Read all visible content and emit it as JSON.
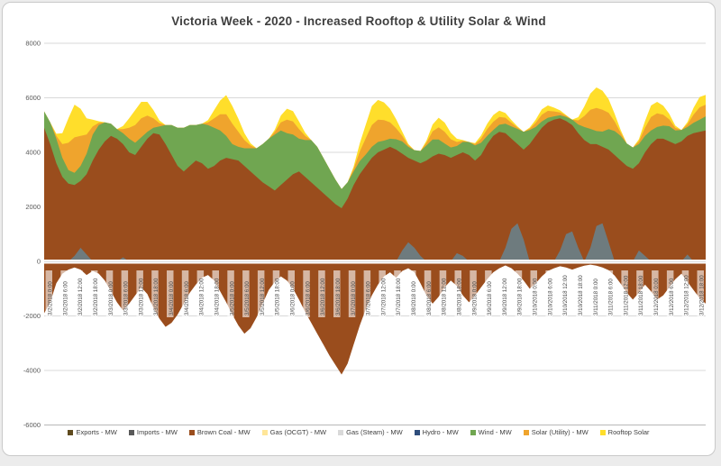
{
  "page": {
    "title": "Victoria Week - 2020 - Increased Rooftop & Utility Solar & Wind"
  },
  "colors": {
    "background": "#ffffff",
    "card_border": "#c9c9c9",
    "grid": "#d9d9d9",
    "axis_bottom": "#b7b7b7",
    "axis_text": "#595959",
    "tick_label_text": "#4d4d4d",
    "tick_label_chip": "rgba(255,255,255,0.6)",
    "zero_band": "#ffffff",
    "title_text": "#3f3f3f"
  },
  "chart_data": {
    "type": "area",
    "stacked": true,
    "title": "Victoria Week - 2020 - Increased Rooftop & Utility Solar & Wind",
    "unit": "MW",
    "grid": true,
    "legend_position": "bottom",
    "y_axis": {
      "min": -6000,
      "max": 8000,
      "tick_step": 2000,
      "ticks": [
        "8000",
        "6000",
        "4000",
        "2000",
        "0",
        "-2000",
        "-4000",
        "-6000"
      ]
    },
    "x_axis": {
      "tick_labels": [
        "3/2/2018 0:00",
        "3/2/2018 6:00",
        "3/2/2018 12:00",
        "3/2/2018 18:00",
        "3/3/2018 0:00",
        "3/3/2018 6:00",
        "3/3/2018 12:00",
        "3/3/2018 18:00",
        "3/4/2018 0:00",
        "3/4/2018 6:00",
        "3/4/2018 12:00",
        "3/4/2018 18:00",
        "3/5/2018 0:00",
        "3/5/2018 6:00",
        "3/5/2018 12:00",
        "3/5/2018 18:00",
        "3/6/2018 0:00",
        "3/6/2018 6:00",
        "3/6/2018 12:00",
        "3/6/2018 18:00",
        "3/7/2018 0:00",
        "3/7/2018 6:00",
        "3/7/2018 12:00",
        "3/7/2018 18:00",
        "3/8/2018 0:00",
        "3/8/2018 6:00",
        "3/8/2018 12:00",
        "3/8/2018 18:00",
        "3/9/2018 0:00",
        "3/9/2018 6:00",
        "3/9/2018 12:00",
        "3/9/2018 18:00",
        "3/10/2018 0:00",
        "3/10/2018 6:00",
        "3/10/2018 12:00",
        "3/10/2018 18:00",
        "3/11/2018 0:00",
        "3/11/2018 6:00",
        "3/11/2018 12:00",
        "3/11/2018 18:00",
        "3/12/2018 0:00",
        "3/12/2018 6:00",
        "3/12/2018 12:00",
        "3/12/2018 18:00"
      ]
    },
    "series": [
      {
        "name": "Brown Coal - MW",
        "color": "#9a4d1d",
        "values": [
          4900,
          4300,
          3600,
          3100,
          2850,
          2800,
          2950,
          3200,
          3700,
          4100,
          4400,
          4600,
          4500,
          4300,
          4000,
          3900,
          4200,
          4500,
          4700,
          4650,
          4300,
          3900,
          3500,
          3300,
          3500,
          3700,
          3600,
          3400,
          3500,
          3700,
          3800,
          3750,
          3700,
          3500,
          3300,
          3100,
          2900,
          2750,
          2600,
          2800,
          3000,
          3200,
          3300,
          3100,
          2900,
          2700,
          2500,
          2300,
          2100,
          1950,
          2300,
          2800,
          3200,
          3500,
          3800,
          4000,
          4100,
          4200,
          4100,
          3950,
          3800,
          3700,
          3600,
          3700,
          3850,
          3950,
          3900,
          3800,
          3900,
          4000,
          3900,
          3700,
          3900,
          4300,
          4600,
          4750,
          4700,
          4500,
          4300,
          4100,
          4300,
          4600,
          4900,
          5100,
          5200,
          5250,
          5150,
          5000,
          4700,
          4450,
          4300,
          4300,
          4200,
          4100,
          3900,
          3700,
          3500,
          3400,
          3600,
          4000,
          4300,
          4500,
          4500,
          4400,
          4300,
          4400,
          4600,
          4700,
          4750,
          4800
        ]
      },
      {
        "name": "Wind - MW",
        "color": "#70a651",
        "values": [
          600,
          800,
          900,
          700,
          500,
          450,
          550,
          750,
          950,
          900,
          700,
          450,
          350,
          400,
          500,
          450,
          350,
          250,
          200,
          300,
          700,
          1100,
          1400,
          1600,
          1500,
          1300,
          1450,
          1600,
          1400,
          1100,
          800,
          550,
          500,
          650,
          850,
          1050,
          1400,
          1750,
          2050,
          2000,
          1700,
          1450,
          1200,
          1350,
          1550,
          1500,
          1300,
          1100,
          900,
          700,
          600,
          500,
          480,
          420,
          400,
          380,
          330,
          300,
          380,
          450,
          400,
          380,
          450,
          550,
          620,
          520,
          420,
          380,
          330,
          380,
          480,
          550,
          450,
          300,
          220,
          260,
          350,
          450,
          560,
          650,
          520,
          330,
          230,
          170,
          120,
          110,
          150,
          200,
          320,
          480,
          560,
          480,
          560,
          750,
          880,
          900,
          820,
          780,
          700,
          600,
          500,
          430,
          480,
          560,
          500,
          420,
          330,
          380,
          450,
          520
        ]
      },
      {
        "name": "Solar (Utility) - MW",
        "color": "#efa42d",
        "values": [
          0,
          0,
          100,
          500,
          1000,
          1300,
          1100,
          700,
          300,
          80,
          0,
          0,
          0,
          150,
          400,
          650,
          700,
          600,
          350,
          120,
          0,
          0,
          0,
          0,
          0,
          0,
          0,
          100,
          350,
          600,
          800,
          750,
          550,
          300,
          100,
          0,
          0,
          0,
          100,
          300,
          500,
          480,
          350,
          150,
          0,
          0,
          0,
          0,
          0,
          0,
          0,
          100,
          350,
          600,
          800,
          820,
          750,
          600,
          400,
          200,
          60,
          0,
          0,
          100,
          300,
          450,
          430,
          300,
          150,
          40,
          0,
          50,
          150,
          250,
          300,
          290,
          220,
          130,
          50,
          0,
          50,
          150,
          250,
          250,
          180,
          100,
          40,
          0,
          150,
          400,
          700,
          850,
          800,
          600,
          350,
          120,
          0,
          0,
          100,
          300,
          500,
          500,
          400,
          250,
          100,
          0,
          100,
          300,
          450,
          430
        ]
      },
      {
        "name": "Rooftop Solar",
        "color": "#ffde2b",
        "values": [
          0,
          0,
          80,
          400,
          900,
          1200,
          1000,
          600,
          250,
          60,
          0,
          0,
          0,
          120,
          350,
          550,
          600,
          500,
          300,
          100,
          0,
          0,
          0,
          0,
          0,
          0,
          0,
          80,
          300,
          500,
          700,
          650,
          480,
          250,
          80,
          0,
          0,
          0,
          80,
          250,
          400,
          380,
          280,
          120,
          0,
          0,
          0,
          0,
          0,
          0,
          0,
          80,
          300,
          500,
          700,
          720,
          650,
          500,
          330,
          160,
          50,
          0,
          0,
          80,
          250,
          350,
          340,
          240,
          120,
          30,
          0,
          40,
          120,
          200,
          250,
          230,
          170,
          100,
          40,
          0,
          40,
          120,
          200,
          200,
          140,
          80,
          30,
          0,
          120,
          350,
          600,
          750,
          700,
          500,
          280,
          100,
          0,
          0,
          80,
          250,
          420,
          420,
          330,
          200,
          80,
          0,
          80,
          250,
          380,
          360
        ]
      },
      {
        "name": "Imports - MW",
        "color": "#6e7b7e",
        "values": [
          0,
          0,
          0,
          0,
          0,
          200,
          500,
          250,
          0,
          0,
          0,
          0,
          0,
          150,
          0,
          0,
          0,
          0,
          0,
          0,
          0,
          0,
          0,
          0,
          0,
          0,
          0,
          0,
          0,
          0,
          0,
          0,
          0,
          0,
          0,
          0,
          0,
          0,
          0,
          0,
          0,
          0,
          0,
          0,
          0,
          0,
          0,
          0,
          0,
          0,
          0,
          0,
          0,
          0,
          0,
          0,
          0,
          0,
          0,
          400,
          700,
          500,
          200,
          0,
          0,
          0,
          0,
          0,
          300,
          200,
          0,
          0,
          0,
          0,
          0,
          0,
          500,
          1200,
          1400,
          800,
          0,
          0,
          0,
          0,
          0,
          400,
          1000,
          1100,
          500,
          0,
          500,
          1300,
          1400,
          700,
          0,
          0,
          0,
          0,
          400,
          200,
          0,
          0,
          0,
          0,
          0,
          0,
          250,
          0,
          0,
          0
        ]
      },
      {
        "name": "Exports - MW",
        "color": "#9a4d1d",
        "values": [
          -1900,
          -1500,
          -800,
          -450,
          -300,
          -220,
          -300,
          -500,
          -350,
          -450,
          -700,
          -1100,
          -1500,
          -1800,
          -1550,
          -1250,
          -950,
          -1200,
          -1700,
          -2100,
          -2400,
          -2250,
          -1950,
          -1550,
          -1150,
          -850,
          -600,
          -500,
          -700,
          -1100,
          -1500,
          -1950,
          -2350,
          -2650,
          -2450,
          -2050,
          -1550,
          -1050,
          -750,
          -550,
          -700,
          -1000,
          -1400,
          -1850,
          -2250,
          -2650,
          -3050,
          -3450,
          -3800,
          -4150,
          -3750,
          -3050,
          -2350,
          -1750,
          -1250,
          -850,
          -550,
          -400,
          -600,
          -350,
          -250,
          -400,
          -800,
          -1250,
          -1550,
          -1300,
          -950,
          -700,
          -900,
          -1250,
          -1500,
          -1250,
          -950,
          -650,
          -400,
          -250,
          -150,
          -250,
          -450,
          -700,
          -1000,
          -800,
          -550,
          -350,
          -250,
          -180,
          -220,
          -300,
          -220,
          -160,
          -120,
          -160,
          -220,
          -320,
          -520,
          -820,
          -1150,
          -1400,
          -1150,
          -850,
          -1100,
          -1400,
          -1250,
          -950,
          -650,
          -450,
          -750,
          -1050,
          -1350,
          -1550
        ]
      }
    ],
    "legend": [
      {
        "label": "Exports - MW",
        "color": "#5f4a1e"
      },
      {
        "label": "Imports - MW",
        "color": "#595959"
      },
      {
        "label": "Brown Coal - MW",
        "color": "#9a4d1d"
      },
      {
        "label": "Gas (OCGT) - MW",
        "color": "#ffe699"
      },
      {
        "label": "Gas (Steam) - MW",
        "color": "#d9d9d9"
      },
      {
        "label": "Hydro - MW",
        "color": "#2e4d7b"
      },
      {
        "label": "Wind - MW",
        "color": "#70a651"
      },
      {
        "label": "Solar (Utility) - MW",
        "color": "#efa42d"
      },
      {
        "label": "Rooftop Solar",
        "color": "#ffde2b"
      }
    ]
  }
}
